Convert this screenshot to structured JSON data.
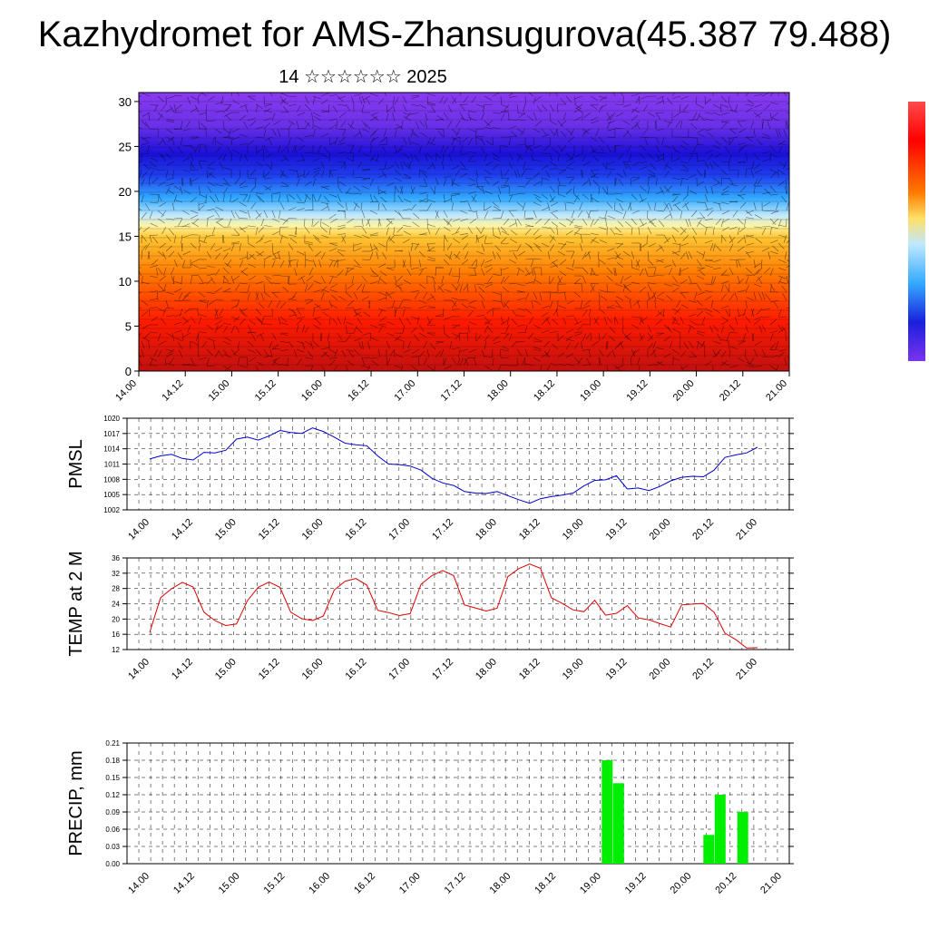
{
  "title": "Kazhydromet for AMS-Zhansugurova(45.387 79.488)",
  "subtitle": "14 ☆☆☆☆☆☆ 2025",
  "time_ticks": [
    "14.00",
    "14.12",
    "15.00",
    "15.12",
    "16.00",
    "16.12",
    "17.00",
    "17.12",
    "18.00",
    "18.12",
    "19.00",
    "19.12",
    "20.00",
    "20.12",
    "21.00"
  ],
  "chart_data": [
    {
      "type": "heatmap",
      "description": "Vertical cross-section colored field with wind barbs over time",
      "y_ticks": [
        0,
        5,
        10,
        15,
        20,
        25,
        30
      ],
      "ylim": [
        0,
        31
      ],
      "colorbar_colors": [
        "#ff0000",
        "#ff6600",
        "#ffcc33",
        "#ffee88",
        "#66ccff",
        "#3366ff",
        "#1100cc",
        "#7733dd"
      ]
    },
    {
      "type": "line",
      "ylabel": "PMSL",
      "ylim": [
        1002,
        1020
      ],
      "y_ticks": [
        1002,
        1005,
        1008,
        1011,
        1014,
        1017,
        1020
      ],
      "color": "#0000cc",
      "values": [
        1012,
        1012.6,
        1012.9,
        1012.1,
        1011.8,
        1013.3,
        1013.2,
        1013.7,
        1015.9,
        1016.3,
        1015.7,
        1016.5,
        1017.6,
        1017.2,
        1017.0,
        1018.1,
        1017.4,
        1016.3,
        1015.1,
        1014.8,
        1014.6,
        1012.6,
        1011.0,
        1010.9,
        1010.6,
        1009.8,
        1008.2,
        1007.3,
        1006.8,
        1005.6,
        1005.3,
        1005.2,
        1005.6,
        1004.8,
        1004.0,
        1003.3,
        1004.2,
        1004.6,
        1004.9,
        1005.3,
        1006.7,
        1007.8,
        1007.9,
        1008.7,
        1006.1,
        1006.3,
        1005.8,
        1006.6,
        1007.7,
        1008.4,
        1008.6,
        1008.5,
        1009.8,
        1012.3,
        1012.8,
        1013.2,
        1014.3
      ]
    },
    {
      "type": "line",
      "ylabel": "TEMP at 2 M",
      "ylim": [
        12,
        36
      ],
      "y_ticks": [
        12,
        16,
        20,
        24,
        28,
        32,
        36
      ],
      "color": "#dd0000",
      "values": [
        16.5,
        25.6,
        27.9,
        29.6,
        28.4,
        21.8,
        19.6,
        18.3,
        18.7,
        24.8,
        28.3,
        29.7,
        28.3,
        21.8,
        20.1,
        19.6,
        20.8,
        27.6,
        29.9,
        30.6,
        28.9,
        22.3,
        21.7,
        20.9,
        21.4,
        29.1,
        31.4,
        32.7,
        31.4,
        23.7,
        22.9,
        22.1,
        22.8,
        31.1,
        33.2,
        34.4,
        33.3,
        25.6,
        24.1,
        22.4,
        21.9,
        24.9,
        21.0,
        21.5,
        23.5,
        20.3,
        19.8,
        18.8,
        17.9,
        23.7,
        23.9,
        24.1,
        21.8,
        16.3,
        14.6,
        12.4,
        12.5
      ]
    },
    {
      "type": "bar",
      "ylabel": "PRECIP, mm",
      "ylim": [
        0,
        0.21
      ],
      "y_ticks": [
        "0.00",
        "0.03",
        "0.06",
        "0.09",
        "0.12",
        "0.15",
        "0.18",
        "0.21"
      ],
      "color": "#00ee00",
      "bars": [
        {
          "t": 19.1,
          "value": 0.18
        },
        {
          "t": 19.2,
          "value": 0.14
        },
        {
          "t": 20.2,
          "value": 0.05
        },
        {
          "t": 20.3,
          "value": 0.12
        },
        {
          "t": 20.5,
          "value": 0.09
        }
      ]
    }
  ]
}
